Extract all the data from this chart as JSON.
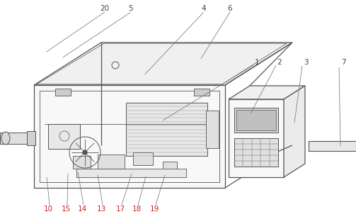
{
  "bg_color": "#ffffff",
  "line_color": "#555555",
  "fig_width": 5.03,
  "fig_height": 3.09,
  "dpi": 100,
  "label_color_red": "#cc2222",
  "label_color_dark": "#444444"
}
